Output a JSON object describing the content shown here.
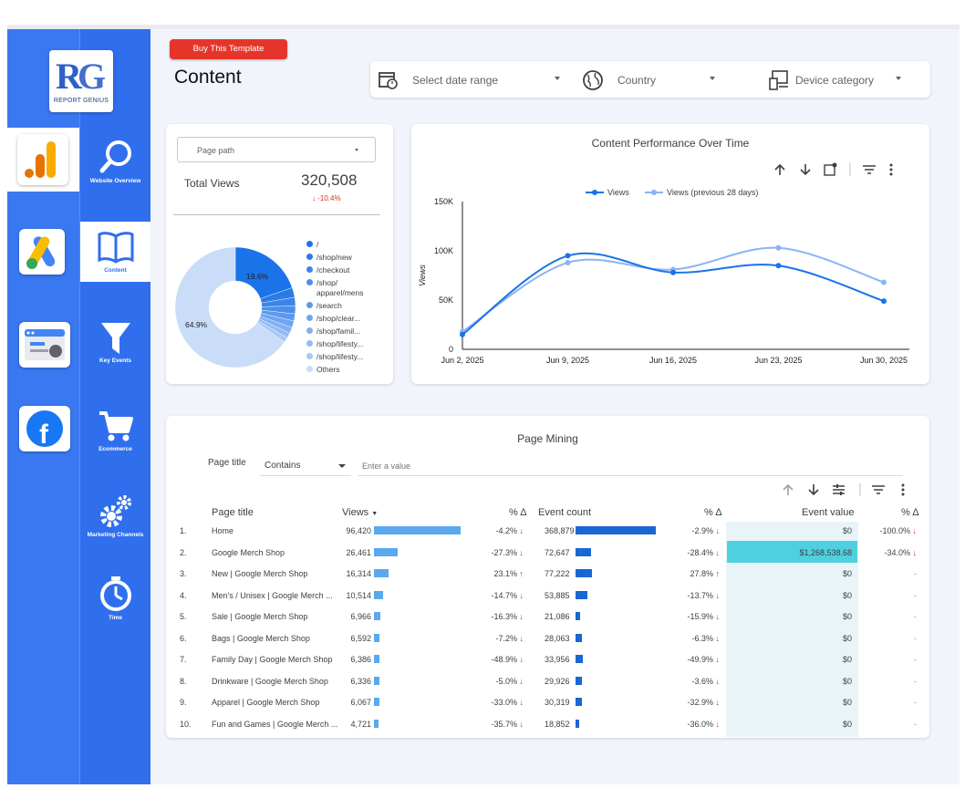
{
  "brand": {
    "logo_caption": "REPORT GENIUS"
  },
  "nav": [
    {
      "label": "Website Overview",
      "icon": "magnifier-icon"
    },
    {
      "label": "Content",
      "icon": "book-icon",
      "active": true
    },
    {
      "label": "Key Events",
      "icon": "funnel-icon"
    },
    {
      "label": "Ecommerce",
      "icon": "cart-icon"
    },
    {
      "label": "Marketing Channels",
      "icon": "gears-icon"
    },
    {
      "label": "Time",
      "icon": "stopwatch-icon"
    }
  ],
  "apps": [
    "google-analytics-icon",
    "google-ads-icon",
    "search-console-icon",
    "facebook-icon"
  ],
  "header": {
    "buy_button": "Buy This Template",
    "title": "Content"
  },
  "filters": {
    "date": "Select date range",
    "country": "Country",
    "device": "Device category"
  },
  "scorecard": {
    "selector": "Page path",
    "label": "Total Views",
    "value": "320,508",
    "delta": "-10.4%"
  },
  "donut": {
    "slices": [
      {
        "label": "/",
        "value": 19.6,
        "color": "#1a73e8"
      },
      {
        "label": "/shop/new",
        "value": 2.6,
        "color": "#2a7be4"
      },
      {
        "label": "/checkout",
        "value": 2.3,
        "color": "#3a85e8"
      },
      {
        "label": "/shop/ apparel/mens",
        "value": 2.1,
        "color": "#4b8fea"
      },
      {
        "label": "/search",
        "value": 1.9,
        "color": "#5c9aee"
      },
      {
        "label": "/shop/clear...",
        "value": 1.8,
        "color": "#6ea5f0"
      },
      {
        "label": "/shop/famil...",
        "value": 1.6,
        "color": "#80b0f2"
      },
      {
        "label": "/shop/lifesty...",
        "value": 1.4,
        "color": "#93bcf4"
      },
      {
        "label": "/shop/lifesty...",
        "value": 1.3,
        "color": "#a7c8f6"
      },
      {
        "label": "Others",
        "value": 64.9,
        "color": "#c9ddf9"
      }
    ],
    "label_big": "19.6%",
    "label_others": "64.9%"
  },
  "chart_data": {
    "type": "line",
    "title": "Content Performance Over Time",
    "ylabel": "Views",
    "x": [
      "Jun 2, 2025",
      "Jun 9, 2025",
      "Jun 16, 2025",
      "Jun 23, 2025",
      "Jun 30, 2025"
    ],
    "yticks": [
      "0",
      "50K",
      "100K",
      "150K"
    ],
    "ylim": [
      0,
      150000
    ],
    "series": [
      {
        "name": "Views",
        "color": "#1a73e8",
        "values": [
          15000,
          95000,
          78000,
          85000,
          49000
        ]
      },
      {
        "name": "Views (previous 28 days)",
        "color": "#8ab4f8",
        "values": [
          18000,
          88000,
          81000,
          103000,
          68000
        ]
      }
    ],
    "legend": "top-center"
  },
  "table": {
    "title": "Page Mining",
    "filter_label": "Page title",
    "filter_op": "Contains",
    "filter_placeholder": "Enter a value",
    "headers": {
      "page": "Page title",
      "views": "Views",
      "d1": "% Δ",
      "events": "Event count",
      "d2": "% Δ",
      "value": "Event value",
      "d3": "% Δ"
    },
    "rows": [
      {
        "n": "1.",
        "page": "Home",
        "views": "96,420",
        "vf": 1.0,
        "d1": "-4.2%",
        "d1dir": "down",
        "events": "368,879",
        "ef": 1.0,
        "d2": "-2.9%",
        "d2dir": "down",
        "value": "$0",
        "d3": "-100.0%",
        "d3dir": "down"
      },
      {
        "n": "2.",
        "page": "Google Merch Shop",
        "views": "26,461",
        "vf": 0.274,
        "d1": "-27.3%",
        "d1dir": "down",
        "events": "72,647",
        "ef": 0.197,
        "d2": "-28.4%",
        "d2dir": "down",
        "value": "$1,268,538.68",
        "d3": "-34.0%",
        "d3dir": "down",
        "hl": true
      },
      {
        "n": "3.",
        "page": "New | Google Merch Shop",
        "views": "16,314",
        "vf": 0.169,
        "d1": "23.1%",
        "d1dir": "up",
        "events": "77,222",
        "ef": 0.209,
        "d2": "27.8%",
        "d2dir": "up",
        "value": "$0",
        "d3": "-",
        "d3dir": ""
      },
      {
        "n": "4.",
        "page": "Men's / Unisex | Google Merch ...",
        "views": "10,514",
        "vf": 0.109,
        "d1": "-14.7%",
        "d1dir": "down",
        "events": "53,885",
        "ef": 0.146,
        "d2": "-13.7%",
        "d2dir": "down",
        "value": "$0",
        "d3": "-",
        "d3dir": ""
      },
      {
        "n": "5.",
        "page": "Sale | Google Merch Shop",
        "views": "6,966",
        "vf": 0.072,
        "d1": "-16.3%",
        "d1dir": "down",
        "events": "21,086",
        "ef": 0.057,
        "d2": "-15.9%",
        "d2dir": "down",
        "value": "$0",
        "d3": "-",
        "d3dir": ""
      },
      {
        "n": "6.",
        "page": "Bags | Google Merch Shop",
        "views": "6,592",
        "vf": 0.068,
        "d1": "-7.2%",
        "d1dir": "down",
        "events": "28,063",
        "ef": 0.076,
        "d2": "-6.3%",
        "d2dir": "down",
        "value": "$0",
        "d3": "-",
        "d3dir": ""
      },
      {
        "n": "7.",
        "page": "Family Day | Google Merch Shop",
        "views": "6,386",
        "vf": 0.066,
        "d1": "-48.9%",
        "d1dir": "down",
        "events": "33,956",
        "ef": 0.092,
        "d2": "-49.9%",
        "d2dir": "down",
        "value": "$0",
        "d3": "-",
        "d3dir": ""
      },
      {
        "n": "8.",
        "page": "Drinkware | Google Merch Shop",
        "views": "6,336",
        "vf": 0.066,
        "d1": "-5.0%",
        "d1dir": "down",
        "events": "29,926",
        "ef": 0.081,
        "d2": "-3.6%",
        "d2dir": "down",
        "value": "$0",
        "d3": "-",
        "d3dir": ""
      },
      {
        "n": "9.",
        "page": "Apparel | Google Merch Shop",
        "views": "6,067",
        "vf": 0.063,
        "d1": "-33.0%",
        "d1dir": "down",
        "events": "30,319",
        "ef": 0.082,
        "d2": "-32.9%",
        "d2dir": "down",
        "value": "$0",
        "d3": "-",
        "d3dir": ""
      },
      {
        "n": "10.",
        "page": "Fun and Games | Google Merch ...",
        "views": "4,721",
        "vf": 0.049,
        "d1": "-35.7%",
        "d1dir": "down",
        "events": "18,852",
        "ef": 0.051,
        "d2": "-36.0%",
        "d2dir": "down",
        "value": "$0",
        "d3": "-",
        "d3dir": ""
      }
    ]
  }
}
